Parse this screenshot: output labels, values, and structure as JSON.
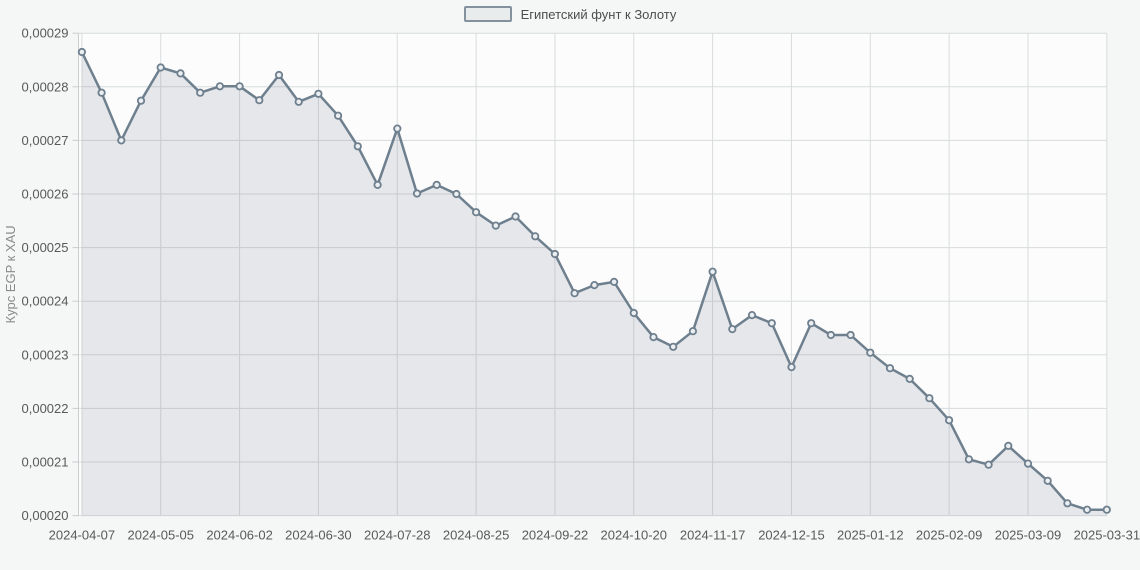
{
  "legend": {
    "label": "Египетский фунт к Золоту"
  },
  "colors": {
    "page_background": "#f5f6f6",
    "plot_background": "#fcfcfd",
    "gridline": "#d8dbdc",
    "axis_line": "#c9cdcf",
    "series_line": "#6e7f8e",
    "area_fill_rgba": "rgba(110,127,142,0.16)",
    "marker_fill": "#eceff1",
    "tick_label": "#595959",
    "axis_title": "#8a8a8a",
    "legend_text": "#4d4d4d",
    "legend_swatch_border": "#84929e",
    "legend_swatch_fill": "#e9eced"
  },
  "chart_data": {
    "type": "area",
    "title": "",
    "xlabel": "",
    "ylabel": "Курс EGP к XAU",
    "legend_position": "top-center",
    "grid": true,
    "decimal_separator": ",",
    "ylim": [
      0.0002,
      0.00029
    ],
    "y_ticks": [
      0.0002,
      0.00021,
      0.00022,
      0.00023,
      0.00024,
      0.00025,
      0.00026,
      0.00027,
      0.00028,
      0.00029
    ],
    "y_tick_labels": [
      "0,00020",
      "0,00021",
      "0,00022",
      "0,00023",
      "0,00024",
      "0,00025",
      "0,00026",
      "0,00027",
      "0,00028",
      "0,00029"
    ],
    "x_tick_indices": [
      0,
      4,
      8,
      12,
      16,
      20,
      24,
      28,
      32,
      36,
      40,
      44,
      48,
      52
    ],
    "x_tick_labels": [
      "2024-04-07",
      "2024-05-05",
      "2024-06-02",
      "2024-06-30",
      "2024-07-28",
      "2024-08-25",
      "2024-09-22",
      "2024-10-20",
      "2024-11-17",
      "2024-12-15",
      "2025-01-12",
      "2025-02-09",
      "2025-03-09",
      "2025-03-31"
    ],
    "series": [
      {
        "name": "Египетский фунт к Золоту",
        "x": [
          "2024-04-07",
          "2024-04-14",
          "2024-04-21",
          "2024-04-28",
          "2024-05-05",
          "2024-05-12",
          "2024-05-19",
          "2024-05-26",
          "2024-06-02",
          "2024-06-09",
          "2024-06-16",
          "2024-06-23",
          "2024-06-30",
          "2024-07-07",
          "2024-07-14",
          "2024-07-21",
          "2024-07-28",
          "2024-08-04",
          "2024-08-11",
          "2024-08-18",
          "2024-08-25",
          "2024-09-01",
          "2024-09-08",
          "2024-09-15",
          "2024-09-22",
          "2024-09-29",
          "2024-10-06",
          "2024-10-13",
          "2024-10-20",
          "2024-10-27",
          "2024-11-03",
          "2024-11-10",
          "2024-11-17",
          "2024-11-24",
          "2024-12-01",
          "2024-12-08",
          "2024-12-15",
          "2024-12-22",
          "2024-12-29",
          "2025-01-05",
          "2025-01-12",
          "2025-01-19",
          "2025-01-26",
          "2025-02-02",
          "2025-02-09",
          "2025-02-16",
          "2025-02-23",
          "2025-03-02",
          "2025-03-09",
          "2025-03-16",
          "2025-03-23",
          "2025-03-30",
          "2025-03-31"
        ],
        "values": [
          0.0002865,
          0.0002789,
          0.00027,
          0.0002774,
          0.0002836,
          0.0002825,
          0.0002789,
          0.0002801,
          0.0002801,
          0.0002775,
          0.0002822,
          0.0002772,
          0.0002787,
          0.0002746,
          0.0002689,
          0.0002617,
          0.0002722,
          0.0002601,
          0.0002617,
          0.00026,
          0.0002566,
          0.0002541,
          0.0002558,
          0.0002521,
          0.0002488,
          0.0002415,
          0.000243,
          0.0002436,
          0.0002378,
          0.0002333,
          0.0002315,
          0.0002344,
          0.0002455,
          0.0002348,
          0.0002374,
          0.0002359,
          0.0002277,
          0.0002359,
          0.0002337,
          0.0002337,
          0.0002304,
          0.0002275,
          0.0002255,
          0.0002219,
          0.0002178,
          0.0002105,
          0.0002095,
          0.000213,
          0.0002097,
          0.0002065,
          0.0002023,
          0.0002011,
          0.0002011
        ]
      }
    ]
  }
}
